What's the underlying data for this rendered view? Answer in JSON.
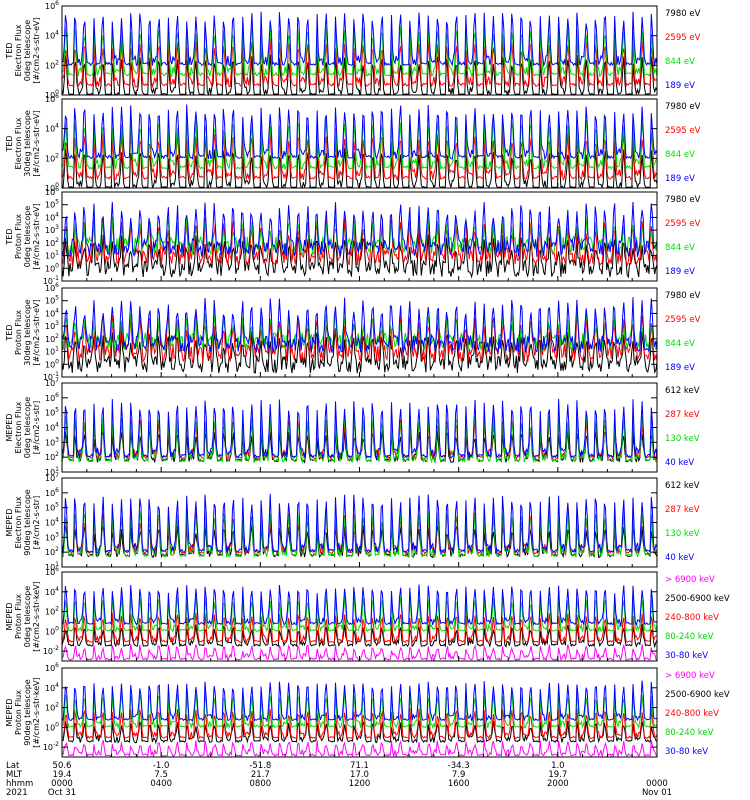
{
  "colors": {
    "black": "#000000",
    "red": "#ff0000",
    "green": "#00dd00",
    "blue": "#0000ff",
    "magenta": "#ff00ff"
  },
  "chart_data": [
    {
      "type": "line",
      "ylabel": [
        "TED",
        "Electron Flux",
        "0deg telescope",
        "[#/cm2-s-str-eV]"
      ],
      "yscale": "log",
      "ylim_exp": [
        0,
        6
      ],
      "tick_labels": [
        "10^0",
        "10^2",
        "10^4",
        "10^6"
      ],
      "series": [
        {
          "name": "7980 eV",
          "color": "black"
        },
        {
          "name": "2595 eV",
          "color": "red"
        },
        {
          "name": "844 eV",
          "color": "green"
        },
        {
          "name": "189 eV",
          "color": "blue"
        }
      ]
    },
    {
      "type": "line",
      "ylabel": [
        "TED",
        "Electron Flux",
        "30deg telescope",
        "[#/cm2-s-str-eV]"
      ],
      "yscale": "log",
      "ylim_exp": [
        0,
        6
      ],
      "tick_labels": [
        "10^0",
        "10^2",
        "10^4",
        "10^6"
      ],
      "series": [
        {
          "name": "7980 eV",
          "color": "black"
        },
        {
          "name": "2595 eV",
          "color": "red"
        },
        {
          "name": "844 eV",
          "color": "green"
        },
        {
          "name": "189 eV",
          "color": "blue"
        }
      ]
    },
    {
      "type": "line",
      "ylabel": [
        "TED",
        "Proton Flux",
        "0deg telescope",
        "[#/cm2-s-str-eV]"
      ],
      "yscale": "log",
      "ylim_exp": [
        -1,
        6
      ],
      "tick_labels": [
        "10^-1",
        "10^0",
        "10^1",
        "10^2",
        "10^3",
        "10^4",
        "10^5",
        "10^6"
      ],
      "series": [
        {
          "name": "7980 eV",
          "color": "black"
        },
        {
          "name": "2595 eV",
          "color": "red"
        },
        {
          "name": "844 eV",
          "color": "green"
        },
        {
          "name": "189 eV",
          "color": "blue"
        }
      ]
    },
    {
      "type": "line",
      "ylabel": [
        "TED",
        "Proton Flux",
        "30deg telescope",
        "[#/cm2-s-str-eV]"
      ],
      "yscale": "log",
      "ylim_exp": [
        -1,
        6
      ],
      "tick_labels": [
        "10^-1",
        "10^0",
        "10^1",
        "10^2",
        "10^3",
        "10^4",
        "10^5",
        "10^6"
      ],
      "series": [
        {
          "name": "7980 eV",
          "color": "black"
        },
        {
          "name": "2595 eV",
          "color": "red"
        },
        {
          "name": "844 eV",
          "color": "green"
        },
        {
          "name": "189 eV",
          "color": "blue"
        }
      ]
    },
    {
      "type": "line",
      "ylabel": [
        "MEPED",
        "Electron Flux",
        "0deg telescope",
        "[#/cm2-s-str]"
      ],
      "yscale": "log",
      "ylim_exp": [
        1,
        7
      ],
      "tick_labels": [
        "10^1",
        "10^2",
        "10^3",
        "10^4",
        "10^5",
        "10^6",
        "10^7"
      ],
      "series": [
        {
          "name": "612 keV",
          "color": "black"
        },
        {
          "name": "287 keV",
          "color": "red"
        },
        {
          "name": "130 keV",
          "color": "green"
        },
        {
          "name": "40 keV",
          "color": "blue"
        }
      ]
    },
    {
      "type": "line",
      "ylabel": [
        "MEPED",
        "Electron Flux",
        "90deg telescope",
        "[#/cm2-s-str]"
      ],
      "yscale": "log",
      "ylim_exp": [
        1,
        7
      ],
      "tick_labels": [
        "10^1",
        "10^2",
        "10^3",
        "10^4",
        "10^5",
        "10^6",
        "10^7"
      ],
      "series": [
        {
          "name": "612 keV",
          "color": "black"
        },
        {
          "name": "287 keV",
          "color": "red"
        },
        {
          "name": "130 keV",
          "color": "green"
        },
        {
          "name": "40 keV",
          "color": "blue"
        }
      ]
    },
    {
      "type": "line",
      "ylabel": [
        "MEPED",
        "Proton Flux",
        "0deg telescope",
        "[#/cm2-s-str-keV]"
      ],
      "yscale": "log",
      "ylim_exp": [
        -3,
        6
      ],
      "tick_labels": [
        "10^-2",
        "10^0",
        "10^2",
        "10^4",
        "10^6"
      ],
      "series": [
        {
          "name": "> 6900 keV",
          "color": "magenta"
        },
        {
          "name": "2500-6900 keV",
          "color": "black"
        },
        {
          "name": "240-800 keV",
          "color": "red"
        },
        {
          "name": "80-240 keV",
          "color": "green"
        },
        {
          "name": "30-80 keV",
          "color": "blue"
        }
      ]
    },
    {
      "type": "line",
      "ylabel": [
        "MEPED",
        "Proton Flux",
        "90deg telescope",
        "[#/cm2-s-str-keV]"
      ],
      "yscale": "log",
      "ylim_exp": [
        -3,
        6
      ],
      "tick_labels": [
        "10^-2",
        "10^0",
        "10^2",
        "10^4",
        "10^6"
      ],
      "series": [
        {
          "name": "> 6900 keV",
          "color": "magenta"
        },
        {
          "name": "2500-6900 keV",
          "color": "black"
        },
        {
          "name": "240-800 keV",
          "color": "red"
        },
        {
          "name": "80-240 keV",
          "color": "green"
        },
        {
          "name": "30-80 keV",
          "color": "blue"
        }
      ]
    }
  ],
  "x_axis": {
    "row_labels": [
      "Lat",
      "MLT",
      "hhmm",
      "2021"
    ],
    "ticks": [
      {
        "hour": 0,
        "lat": "50.6",
        "mlt": "19.4",
        "hhmm": "0000",
        "date": "Oct 31"
      },
      {
        "hour": 4,
        "lat": "-1.0",
        "mlt": "7.5",
        "hhmm": "0400",
        "date": ""
      },
      {
        "hour": 8,
        "lat": "-51.8",
        "mlt": "21.7",
        "hhmm": "0800",
        "date": ""
      },
      {
        "hour": 12,
        "lat": "71.1",
        "mlt": "17.0",
        "hhmm": "1200",
        "date": ""
      },
      {
        "hour": 16,
        "lat": "-34.3",
        "mlt": "7.9",
        "hhmm": "1600",
        "date": ""
      },
      {
        "hour": 20,
        "lat": "1.0",
        "mlt": "19.7",
        "hhmm": "2000",
        "date": ""
      },
      {
        "hour": 24,
        "lat": "",
        "mlt": "",
        "hhmm": "0000",
        "date": "Nov 01"
      }
    ]
  }
}
